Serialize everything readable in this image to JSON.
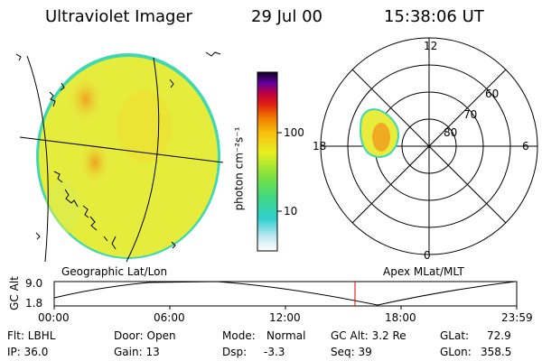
{
  "header": {
    "title": "Ultraviolet Imager",
    "date": "29 Jul 00",
    "time": "15:38:06 UT"
  },
  "colorbar": {
    "unit_label": "photon cm⁻²s⁻¹",
    "ticks": [
      "100",
      "10"
    ]
  },
  "polar": {
    "hour_labels": {
      "top": "12",
      "left": "18",
      "right": "6",
      "bottom": "0"
    },
    "lat_labels": [
      "60",
      "70",
      "80"
    ]
  },
  "projection_labels": {
    "left": "Geographic Lat/Lon",
    "right": "Apex MLat/MLT"
  },
  "alt_plot": {
    "axis_label": "GC Alt",
    "y_ticks": [
      "9.0",
      "1.8"
    ],
    "x_ticks": [
      "00:00",
      "06:00",
      "12:00",
      "18:00",
      "23:59"
    ]
  },
  "info": {
    "row1": {
      "filter": "Flt: LBHL",
      "door": "Door: Open",
      "mode_label": "Mode:",
      "mode_value": "Normal",
      "gc_alt": "GC Alt: 3.2 Re",
      "glat_label": "GLat:",
      "glat_value": "72.9"
    },
    "row2": {
      "ip": "IP: 36.0",
      "gain": "Gain: 13",
      "dsp_label": "Dsp:",
      "dsp_value": "-3.3",
      "seq": "Seq: 39",
      "glon_label": "GLon:",
      "glon_value": "358.5"
    }
  },
  "colors": {
    "disk_fill": "#e8ec40",
    "disk_edge": "#40d8b0",
    "aurora": "#f0b020",
    "marker": "#e00000"
  }
}
